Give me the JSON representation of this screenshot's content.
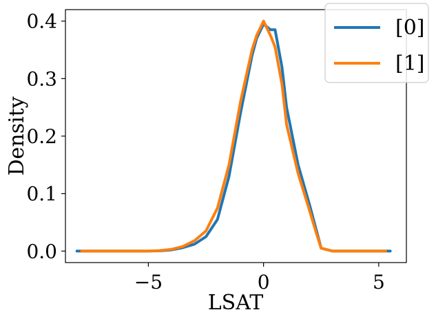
{
  "chart_data": {
    "type": "line",
    "title": "",
    "xlabel": "LSAT",
    "ylabel": "Density",
    "xlim": [
      -8.6,
      6.2
    ],
    "ylim": [
      -0.02,
      0.42
    ],
    "xticks": [
      -5,
      0,
      5
    ],
    "xtick_labels": [
      "−5",
      "0",
      "5"
    ],
    "yticks": [
      0.0,
      0.1,
      0.2,
      0.3,
      0.4
    ],
    "ytick_labels": [
      "0.0",
      "0.1",
      "0.2",
      "0.3",
      "0.4"
    ],
    "grid": false,
    "legend_position": "top-right",
    "series": [
      {
        "name": "[0]",
        "color": "#1f77b4",
        "x": [
          -8.1,
          -6.0,
          -5.0,
          -4.5,
          -4.0,
          -3.5,
          -3.0,
          -2.5,
          -2.0,
          -1.5,
          -1.0,
          -0.5,
          -0.3,
          0.0,
          0.3,
          0.5,
          0.8,
          1.0,
          1.5,
          2.0,
          2.3,
          2.5,
          3.0,
          4.0,
          5.5
        ],
        "y": [
          0.0,
          0.0,
          0.0,
          0.0005,
          0.002,
          0.006,
          0.012,
          0.025,
          0.055,
          0.13,
          0.24,
          0.34,
          0.37,
          0.395,
          0.385,
          0.385,
          0.32,
          0.25,
          0.15,
          0.08,
          0.035,
          0.005,
          0.0,
          0.0,
          0.0
        ]
      },
      {
        "name": "[1]",
        "color": "#ff7f0e",
        "x": [
          -7.9,
          -6.0,
          -5.0,
          -4.5,
          -4.0,
          -3.5,
          -3.0,
          -2.5,
          -2.0,
          -1.5,
          -1.0,
          -0.5,
          -0.3,
          0.0,
          0.3,
          0.5,
          0.8,
          1.0,
          1.5,
          2.0,
          2.3,
          2.5,
          3.0,
          4.0,
          5.3
        ],
        "y": [
          0.0,
          0.0,
          0.0,
          0.001,
          0.003,
          0.008,
          0.018,
          0.035,
          0.075,
          0.15,
          0.26,
          0.35,
          0.375,
          0.4,
          0.375,
          0.355,
          0.29,
          0.22,
          0.135,
          0.07,
          0.03,
          0.005,
          0.0,
          0.0,
          0.0
        ]
      }
    ]
  }
}
